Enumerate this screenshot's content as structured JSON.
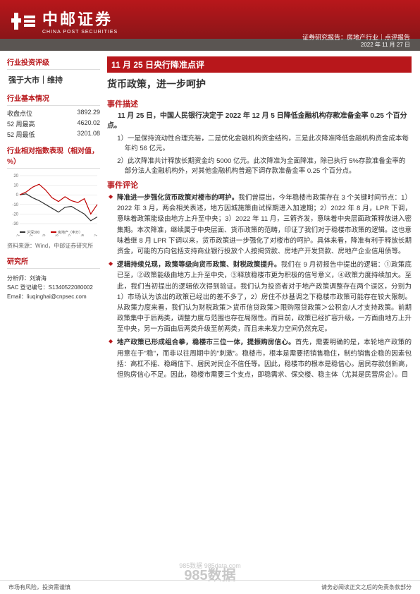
{
  "brand": {
    "zh": "中邮证券",
    "en": "CHINA POST SECURITIES"
  },
  "report_type": "证券研究报告：房地产行业｜点评报告",
  "date": "2022 年 11 月 27 日",
  "sidebar": {
    "rating_title": "行业投资评级",
    "rating": "强于大市｜维持",
    "basic_title": "行业基本情况",
    "basics": [
      {
        "k": "收盘点位",
        "v": "3892.29"
      },
      {
        "k": "52 周最高",
        "v": "4620.02"
      },
      {
        "k": "52 周最低",
        "v": "3201.08"
      }
    ],
    "chart_title": "行业相对指数表现（相对值，%）",
    "chart": {
      "xlim": [
        "2021-11",
        "2022-11"
      ],
      "ylim": [
        -30,
        20
      ],
      "ytick_step": 10,
      "xticks": [
        "2021/11",
        "2021/12",
        "2022/01",
        "2022/02",
        "2022/03",
        "2022/04",
        "2022/05",
        "2022/06",
        "2022/07",
        "2022/08",
        "2022/09",
        "2022/10",
        "2022/11"
      ],
      "series": [
        {
          "name": "沪深300",
          "color": "#333333",
          "width": 1.2,
          "values": [
            0,
            1,
            -3,
            -6,
            -10,
            -14,
            -18,
            -13,
            -12,
            -16,
            -20,
            -27,
            -23
          ]
        },
        {
          "name": "房地产（申万）",
          "color": "#c00000",
          "width": 1.2,
          "values": [
            0,
            3,
            8,
            11,
            5,
            -3,
            -7,
            -2,
            -6,
            -8,
            -4,
            -20,
            -10
          ]
        }
      ],
      "grid_color": "#dddddd",
      "background_color": "#ffffff",
      "axis_fontsize": 6
    },
    "chart_src": "资料来源：Wind，中邮证券研究所",
    "dept_title": "研究所",
    "analyst_label": "分析师：",
    "analyst_name": "刘清海",
    "sac_label": "SAC 登记编号：",
    "sac_no": "S1340522080002",
    "email_label": "Email：",
    "email": "liuqinghai@cnpsec.com"
  },
  "main": {
    "topic": "11 月 25 日央行降准点评",
    "subtitle": "货币政策，进一步呵护",
    "desc_title": "事件描述",
    "desc_bold": "11 月 25 日，中国人民银行决定于 2022 年 12 月 5 日降低金融机构存款准备金率 0.25 个百分点。",
    "desc_items": [
      "1）一是保持流动性合理充裕，二是优化金融机构资金结构，三是此次降准降低金融机构资金成本每年约 56 亿元。",
      "2）此次降准共计释放长期资金约 5000 亿元。此次降准为全面降准，除已执行 5%存款准备金率的部分法人金融机构外，对其他金融机构普遍下调存款准备金率 0.25 个百分点。"
    ],
    "comment_title": "事件评论",
    "bullets": [
      {
        "lead": "降准进一步强化货币政策对楼市的呵护。",
        "body": "我们曾提出，今年稳楼市政策存在 3 个关键时间节点：1）2022 年 3 月，两会相关表述，地方因城施策由试探期进入加速期；2）2022 年 8 月，LPR 下调，意味着政策能级由地方上升至中央；3）2022 年 11 月，三箭齐发，意味着中央层面政策释放进入密集期。本次降准，继续属于中央层面、货币政策的范畴，印证了我们对于稳楼市政策的逻辑。这也意味着继 8 月 LPR 下调以来，货币政策进一步强化了对楼市的呵护。具体来看，降准有利于释放长期资金，可能的方向包括支持商业银行投放个人按揭贷款、房地产开发贷款、房地产企业信用债等。"
      },
      {
        "lead": "逻辑持续兑现，政策等级向货币政策、财税政策提升。",
        "body": "我们在 9 月初报告中提出的逻辑：①政策底已至，②政策能级由地方上升至中央，③释放稳楼市更为积极的信号意义，④政策力度持续加大。至此，我们当初提出的逻辑依次得到验证。我们认为投资者对于地产政策调整存在两个误区，分别为 1）市场认为该出的政策已经出的差不多了，2）房住不炒基调之下稳楼市政策可能存在较大限制。从政策力度来看，我们认为财税政策＞货币信贷政策＞限购限贷政策＞公积金/人才支持政策。前期政策集中于后两类，调整力度与范围也存在局限性。而目前，政策已经扩容升级，一方面由地方上升至中央，另一方面由后两类升级至前两类，而且未来发力空间仍然充足。"
      },
      {
        "lead": "地产政策已形成组合拳，稳楼市三位一体，提振购房信心。",
        "body": "首先，需要明确的是，本轮地产政策的用意在于\"稳\"，而非以往周期中的\"刺激\"。稳楼市，根本是需要把销售稳住，制约销售企稳的因素包括：高杠不摇、稳绳信下、居民对民企不信任等。因此，稳楼市的根本是稳信心。居民存款创新高，但购房信心不足。因此，稳楼市需要三个支点，即稳需求、保交楼、稳主体（尤其是民营房企）。目"
      }
    ]
  },
  "footer": {
    "left": "市场有风险，投资需谨慎",
    "right": "请务必阅读正文之后的免责条款部分"
  },
  "watermark": {
    "big": "985数据",
    "url": "985数据  985data.com"
  }
}
